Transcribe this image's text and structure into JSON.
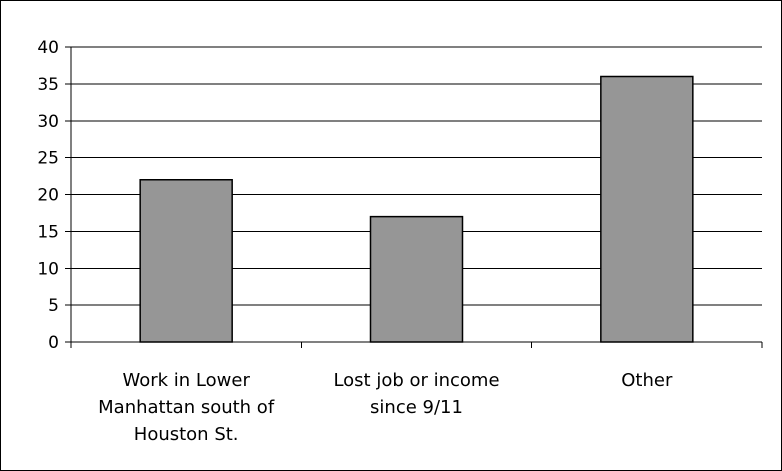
{
  "chart_data": {
    "type": "bar",
    "categories": [
      [
        "Work in Lower",
        "Manhattan south of",
        "Houston St."
      ],
      [
        "Lost job or income",
        "since 9/11"
      ],
      [
        "Other"
      ]
    ],
    "values": [
      22,
      17,
      36
    ],
    "ylim": [
      0,
      40
    ],
    "yticks": [
      "0",
      "5",
      "10",
      "15",
      "20",
      "25",
      "30",
      "35",
      "40"
    ],
    "grid": true,
    "legend": "none",
    "colors": {
      "bar_fill": "#969696",
      "bar_stroke": "#000000",
      "gridline": "#000000",
      "axis": "#000000"
    }
  }
}
